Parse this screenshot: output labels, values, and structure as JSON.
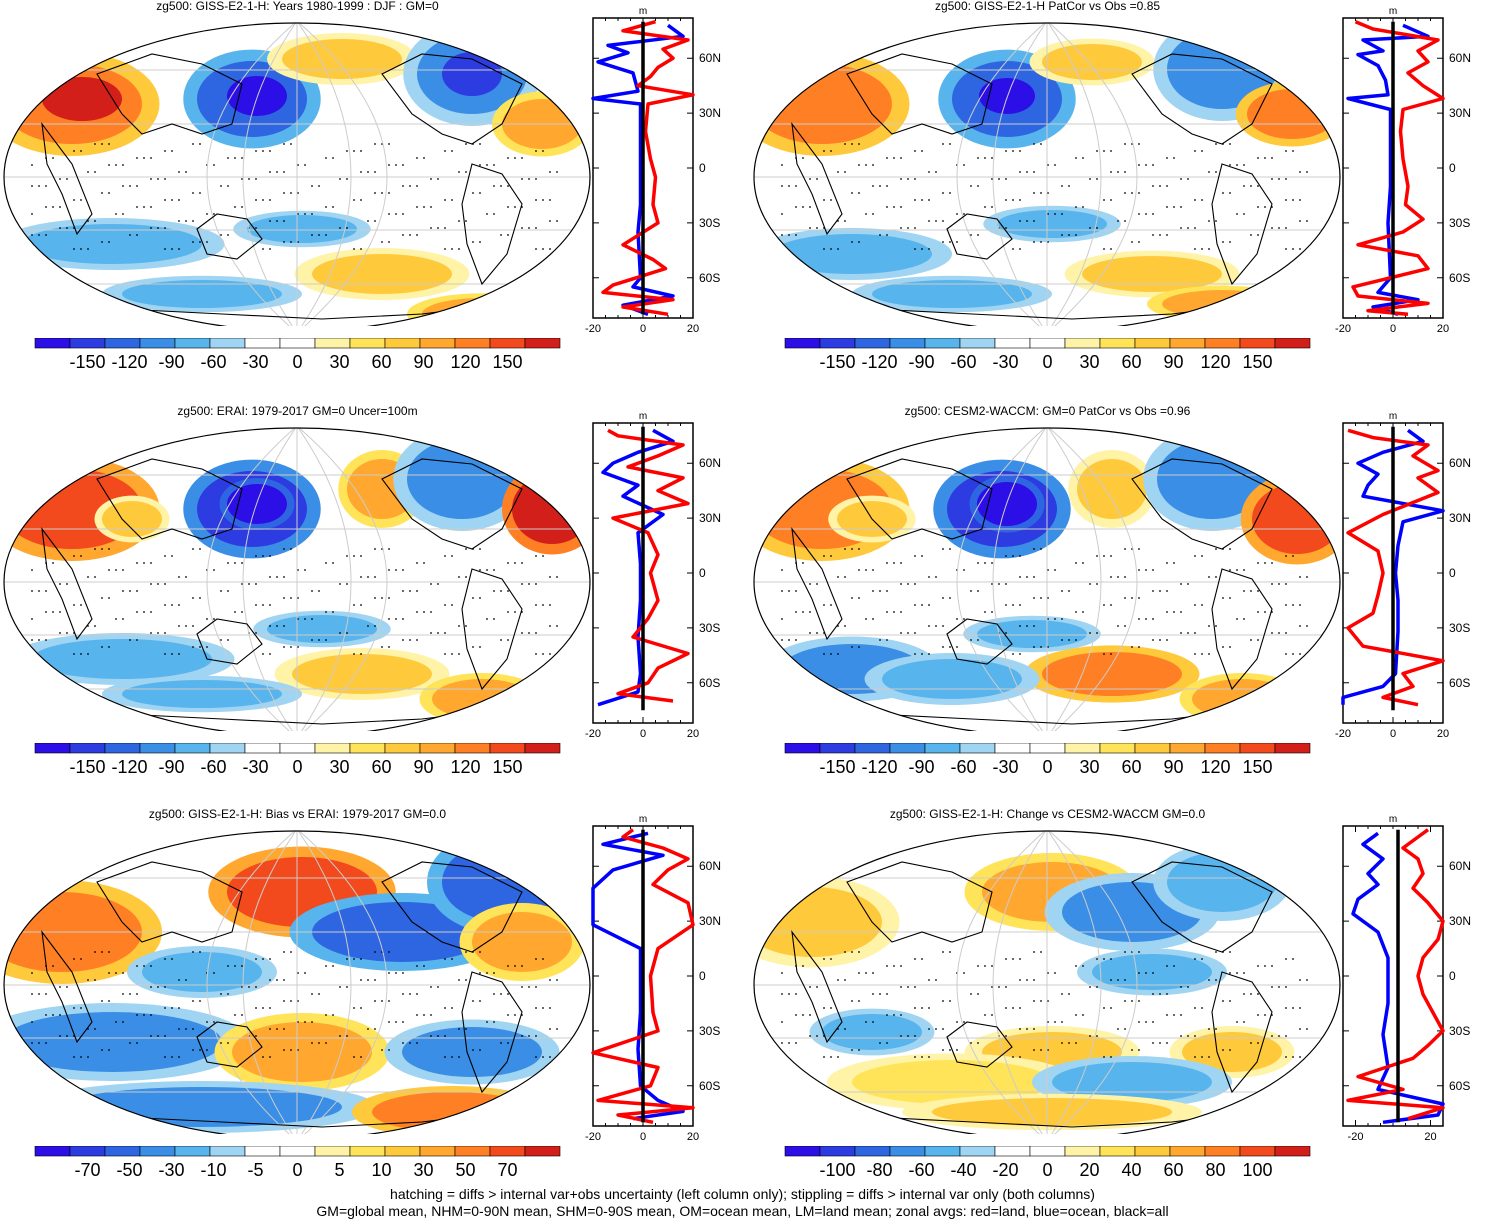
{
  "panels": [
    {
      "title": "zg500: GISS-E2-1-H: Years 1980-1999 : DJF : GM=0",
      "colorbar_labels": [
        "-150",
        "-120",
        "-90",
        "-60",
        "-30",
        "0",
        "30",
        "60",
        "90",
        "120",
        "150"
      ],
      "profile": {
        "unit": "m",
        "x_ticks": [
          "-20",
          "0",
          "20"
        ],
        "y_ticks": [
          "60N",
          "30N",
          "0",
          "30S",
          "60S"
        ],
        "land": [
          [
            5,
            80
          ],
          [
            -8,
            75
          ],
          [
            18,
            70
          ],
          [
            8,
            65
          ],
          [
            12,
            60
          ],
          [
            6,
            55
          ],
          [
            3,
            50
          ],
          [
            -2,
            45
          ],
          [
            20,
            40
          ],
          [
            2,
            35
          ],
          [
            1,
            20
          ],
          [
            3,
            5
          ],
          [
            5,
            -5
          ],
          [
            4,
            -20
          ],
          [
            6,
            -30
          ],
          [
            -8,
            -42
          ],
          [
            4,
            -50
          ],
          [
            9,
            -55
          ],
          [
            -12,
            -64
          ],
          [
            -16,
            -68
          ],
          [
            12,
            -72
          ],
          [
            -8,
            -76
          ],
          [
            10,
            -80
          ]
        ],
        "ocean": [
          [
            10,
            78
          ],
          [
            16,
            72
          ],
          [
            -2,
            69
          ],
          [
            -14,
            67
          ],
          [
            -6,
            63
          ],
          [
            -18,
            58
          ],
          [
            -4,
            52
          ],
          [
            -2,
            42
          ],
          [
            -22,
            38
          ],
          [
            -1,
            35
          ],
          [
            -1,
            20
          ],
          [
            -1,
            0
          ],
          [
            -1,
            -20
          ],
          [
            -2,
            -35
          ],
          [
            -1,
            -60
          ],
          [
            -4,
            -65
          ],
          [
            12,
            -70
          ],
          [
            -8,
            -75
          ],
          [
            2,
            -80
          ]
        ],
        "all": [
          [
            0,
            80
          ],
          [
            0,
            -80
          ]
        ]
      }
    },
    {
      "title": "zg500: GISS-E2-1-H PatCor vs Obs =0.85",
      "colorbar_labels": [
        "-150",
        "-120",
        "-90",
        "-60",
        "-30",
        "0",
        "30",
        "60",
        "90",
        "120",
        "150"
      ],
      "profile": {
        "unit": "m",
        "x_ticks": [
          "-20",
          "0",
          "20"
        ],
        "y_ticks": [
          "60N",
          "30N",
          "0",
          "30S",
          "60S"
        ],
        "land": [
          [
            -15,
            80
          ],
          [
            -8,
            76
          ],
          [
            18,
            70
          ],
          [
            10,
            64
          ],
          [
            14,
            58
          ],
          [
            6,
            52
          ],
          [
            12,
            45
          ],
          [
            20,
            38
          ],
          [
            4,
            32
          ],
          [
            3,
            20
          ],
          [
            4,
            5
          ],
          [
            6,
            -10
          ],
          [
            5,
            -20
          ],
          [
            12,
            -28
          ],
          [
            4,
            -35
          ],
          [
            -14,
            -42
          ],
          [
            10,
            -48
          ],
          [
            14,
            -55
          ],
          [
            -16,
            -65
          ],
          [
            -14,
            -70
          ],
          [
            14,
            -74
          ],
          [
            -10,
            -78
          ],
          [
            6,
            -80
          ]
        ],
        "ocean": [
          [
            4,
            78
          ],
          [
            14,
            72
          ],
          [
            -12,
            70
          ],
          [
            -4,
            64
          ],
          [
            -14,
            62
          ],
          [
            -6,
            56
          ],
          [
            -3,
            48
          ],
          [
            -2,
            40
          ],
          [
            -18,
            38
          ],
          [
            -1,
            32
          ],
          [
            -1,
            10
          ],
          [
            -1,
            -10
          ],
          [
            -2,
            -30
          ],
          [
            -1,
            -60
          ],
          [
            -6,
            -68
          ],
          [
            10,
            -72
          ],
          [
            -8,
            -76
          ],
          [
            2,
            -80
          ]
        ],
        "all": [
          [
            0,
            80
          ],
          [
            0,
            -80
          ]
        ]
      }
    },
    {
      "title": "zg500: ERAI: 1979-2017 GM=0 Uncer=100m",
      "colorbar_labels": [
        "-150",
        "-120",
        "-90",
        "-60",
        "-30",
        "0",
        "30",
        "60",
        "90",
        "120",
        "150"
      ],
      "profile": {
        "unit": "m",
        "x_ticks": [
          "-20",
          "0",
          "20"
        ],
        "y_ticks": [
          "60N",
          "30N",
          "0",
          "30S",
          "60S"
        ],
        "land": [
          [
            -14,
            78
          ],
          [
            -10,
            75
          ],
          [
            16,
            70
          ],
          [
            6,
            64
          ],
          [
            -6,
            58
          ],
          [
            16,
            52
          ],
          [
            6,
            45
          ],
          [
            18,
            38
          ],
          [
            -12,
            30
          ],
          [
            2,
            22
          ],
          [
            6,
            10
          ],
          [
            3,
            0
          ],
          [
            6,
            -15
          ],
          [
            2,
            -25
          ],
          [
            -4,
            -35
          ],
          [
            18,
            -44
          ],
          [
            6,
            -52
          ],
          [
            2,
            -60
          ],
          [
            -10,
            -66
          ],
          [
            12,
            -70
          ]
        ],
        "ocean": [
          [
            4,
            78
          ],
          [
            12,
            72
          ],
          [
            -2,
            66
          ],
          [
            -12,
            60
          ],
          [
            -16,
            55
          ],
          [
            -2,
            48
          ],
          [
            -8,
            42
          ],
          [
            8,
            32
          ],
          [
            -2,
            22
          ],
          [
            -1,
            5
          ],
          [
            -1,
            -15
          ],
          [
            -2,
            -35
          ],
          [
            -1,
            -55
          ],
          [
            -2,
            -65
          ],
          [
            -18,
            -72
          ]
        ],
        "all": [
          [
            0,
            80
          ],
          [
            0,
            -75
          ]
        ]
      }
    },
    {
      "title": "zg500: CESM2-WACCM: GM=0 PatCor vs Obs =0.96",
      "colorbar_labels": [
        "-150",
        "-120",
        "-90",
        "-60",
        "-30",
        "0",
        "30",
        "60",
        "90",
        "120",
        "150"
      ],
      "profile": {
        "unit": "m",
        "x_ticks": [
          "-20",
          "0",
          "20"
        ],
        "y_ticks": [
          "60N",
          "30N",
          "0",
          "30S",
          "60S"
        ],
        "land": [
          [
            -18,
            78
          ],
          [
            -8,
            74
          ],
          [
            14,
            70
          ],
          [
            8,
            64
          ],
          [
            18,
            56
          ],
          [
            10,
            52
          ],
          [
            18,
            44
          ],
          [
            -4,
            32
          ],
          [
            -18,
            22
          ],
          [
            -6,
            12
          ],
          [
            -4,
            0
          ],
          [
            -6,
            -12
          ],
          [
            -8,
            -22
          ],
          [
            -18,
            -30
          ],
          [
            -12,
            -40
          ],
          [
            20,
            -48
          ],
          [
            4,
            -55
          ],
          [
            8,
            -62
          ],
          [
            -4,
            -68
          ],
          [
            10,
            -72
          ]
        ],
        "ocean": [
          [
            6,
            78
          ],
          [
            12,
            72
          ],
          [
            -4,
            66
          ],
          [
            -14,
            60
          ],
          [
            -6,
            54
          ],
          [
            -10,
            48
          ],
          [
            -12,
            42
          ],
          [
            20,
            34
          ],
          [
            4,
            28
          ],
          [
            2,
            15
          ],
          [
            1,
            0
          ],
          [
            2,
            -15
          ],
          [
            2,
            -32
          ],
          [
            1,
            -55
          ],
          [
            -4,
            -62
          ],
          [
            -20,
            -68
          ],
          [
            -22,
            -72
          ]
        ],
        "all": [
          [
            0,
            80
          ],
          [
            0,
            -75
          ]
        ]
      }
    },
    {
      "title": "zg500: GISS-E2-1-H: Bias vs ERAI: 1979-2017 GM=0.0",
      "colorbar_labels": [
        "-70",
        "-50",
        "-30",
        "-10",
        "-5",
        "0",
        "5",
        "10",
        "30",
        "50",
        "70"
      ],
      "profile": {
        "unit": "m",
        "x_ticks": [
          "-20",
          "0",
          "20"
        ],
        "y_ticks": [
          "60N",
          "30N",
          "0",
          "30S",
          "60S"
        ],
        "land": [
          [
            -4,
            80
          ],
          [
            -8,
            76
          ],
          [
            8,
            70
          ],
          [
            18,
            64
          ],
          [
            10,
            58
          ],
          [
            4,
            50
          ],
          [
            18,
            40
          ],
          [
            22,
            28
          ],
          [
            6,
            15
          ],
          [
            3,
            0
          ],
          [
            4,
            -20
          ],
          [
            6,
            -30
          ],
          [
            -20,
            -42
          ],
          [
            6,
            -50
          ],
          [
            3,
            -60
          ],
          [
            -18,
            -68
          ],
          [
            20,
            -72
          ],
          [
            -10,
            -76
          ],
          [
            4,
            -80
          ]
        ],
        "ocean": [
          [
            2,
            78
          ],
          [
            -16,
            72
          ],
          [
            8,
            66
          ],
          [
            -12,
            58
          ],
          [
            -20,
            48
          ],
          [
            -24,
            38
          ],
          [
            -20,
            28
          ],
          [
            -1,
            15
          ],
          [
            -1,
            0
          ],
          [
            -1,
            -20
          ],
          [
            -2,
            -40
          ],
          [
            -1,
            -60
          ],
          [
            6,
            -68
          ],
          [
            16,
            -74
          ],
          [
            -4,
            -78
          ]
        ],
        "all": [
          [
            0,
            80
          ],
          [
            0,
            -80
          ]
        ]
      }
    },
    {
      "title": "zg500: GISS-E2-1-H: Change vs CESM2-WACCM GM=0.0",
      "colorbar_labels": [
        "-100",
        "-80",
        "-60",
        "-40",
        "-20",
        "0",
        "20",
        "40",
        "60",
        "80",
        "100"
      ],
      "profile": {
        "unit": "m",
        "x_ticks": [
          "-20",
          "20"
        ],
        "y_ticks": [
          "60N",
          "30N",
          "0",
          "30S",
          "60S"
        ],
        "land": [
          [
            14,
            80
          ],
          [
            10,
            76
          ],
          [
            4,
            70
          ],
          [
            10,
            64
          ],
          [
            12,
            56
          ],
          [
            8,
            48
          ],
          [
            14,
            40
          ],
          [
            28,
            30
          ],
          [
            18,
            20
          ],
          [
            12,
            10
          ],
          [
            10,
            0
          ],
          [
            12,
            -10
          ],
          [
            16,
            -20
          ],
          [
            20,
            -30
          ],
          [
            14,
            -38
          ],
          [
            8,
            -45
          ],
          [
            -14,
            -55
          ],
          [
            4,
            -62
          ],
          [
            -18,
            -68
          ],
          [
            24,
            -72
          ],
          [
            6,
            -78
          ]
        ],
        "ocean": [
          [
            -6,
            78
          ],
          [
            -12,
            72
          ],
          [
            -4,
            64
          ],
          [
            -10,
            56
          ],
          [
            -6,
            50
          ],
          [
            -14,
            42
          ],
          [
            -16,
            34
          ],
          [
            -6,
            24
          ],
          [
            -2,
            10
          ],
          [
            -2,
            0
          ],
          [
            -2,
            -15
          ],
          [
            -4,
            -32
          ],
          [
            -2,
            -50
          ],
          [
            -6,
            -62
          ],
          [
            26,
            -70
          ],
          [
            18,
            -76
          ],
          [
            -4,
            -80
          ]
        ],
        "all": [
          [
            2,
            80
          ],
          [
            2,
            -80
          ]
        ]
      }
    }
  ],
  "colors": {
    "palette": [
      "#2b0fe6",
      "#2c3ce0",
      "#2d66e0",
      "#3a8ee6",
      "#57b4ec",
      "#9fd4f2",
      "#ffffff",
      "#ffffff",
      "#fff3a8",
      "#ffe45a",
      "#ffc93c",
      "#ffa72e",
      "#ff7f24",
      "#f24a1c",
      "#d21f1a"
    ],
    "land_line": "#ff0000",
    "ocean_line": "#0000ff",
    "all_line": "#000000"
  },
  "footer": {
    "line1": "hatching = diffs > internal var+obs uncertainty (left column only); stippling = diffs > internal var only (both columns)",
    "line2": "GM=global mean, NHM=0-90N mean, SHM=0-90S mean, OM=ocean mean, LM=land mean; zonal avgs: red=land, blue=ocean, black=all"
  }
}
